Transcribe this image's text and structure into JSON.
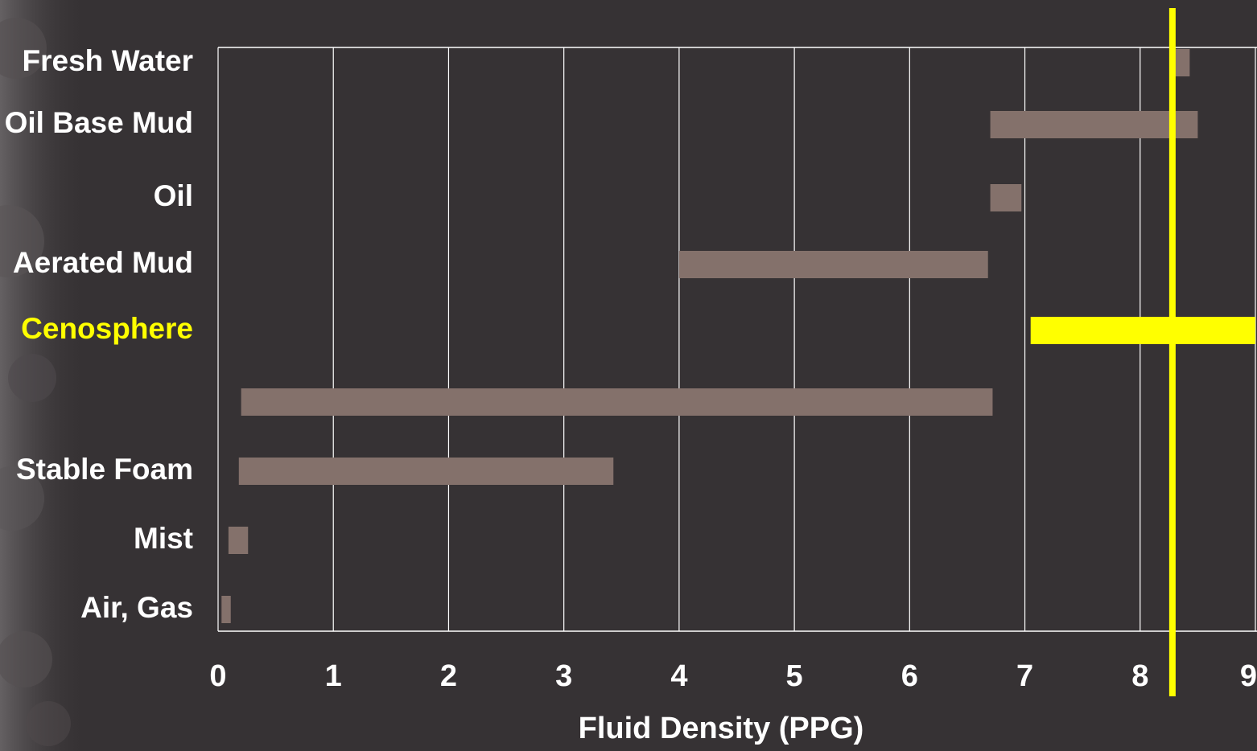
{
  "chart_data": {
    "type": "range-bar",
    "categories": [
      "Fresh Water",
      "Oil Base Mud",
      "Oil",
      "Aerated Mud",
      "Cenosphere",
      null,
      "Stable Foam",
      "Mist",
      "Air, Gas"
    ],
    "starts": [
      8.3,
      6.7,
      6.7,
      4.0,
      7.05,
      0.2,
      0.18,
      0.09,
      0.03
    ],
    "ends": [
      8.43,
      8.5,
      6.97,
      6.68,
      9.0,
      6.72,
      3.43,
      0.26,
      0.11
    ],
    "bar_colors": [
      "#84716b",
      "#84716b",
      "#84716b",
      "#84716b",
      "#ffff00",
      "#84716b",
      "#84716b",
      "#84716b",
      "#84716b"
    ],
    "label_colors": [
      "#ffffff",
      "#ffffff",
      "#ffffff",
      "#ffffff",
      "#ffff00",
      "#ffffff",
      "#ffffff",
      "#ffffff",
      "#ffffff"
    ],
    "xlabel": "Fluid Density (PPG)",
    "xlim": [
      0,
      9
    ],
    "xticks": [
      0,
      1,
      2,
      3,
      4,
      5,
      6,
      7,
      8,
      9
    ],
    "grid": true,
    "reference_line": {
      "value": 8.28,
      "color": "#ffff00"
    }
  }
}
